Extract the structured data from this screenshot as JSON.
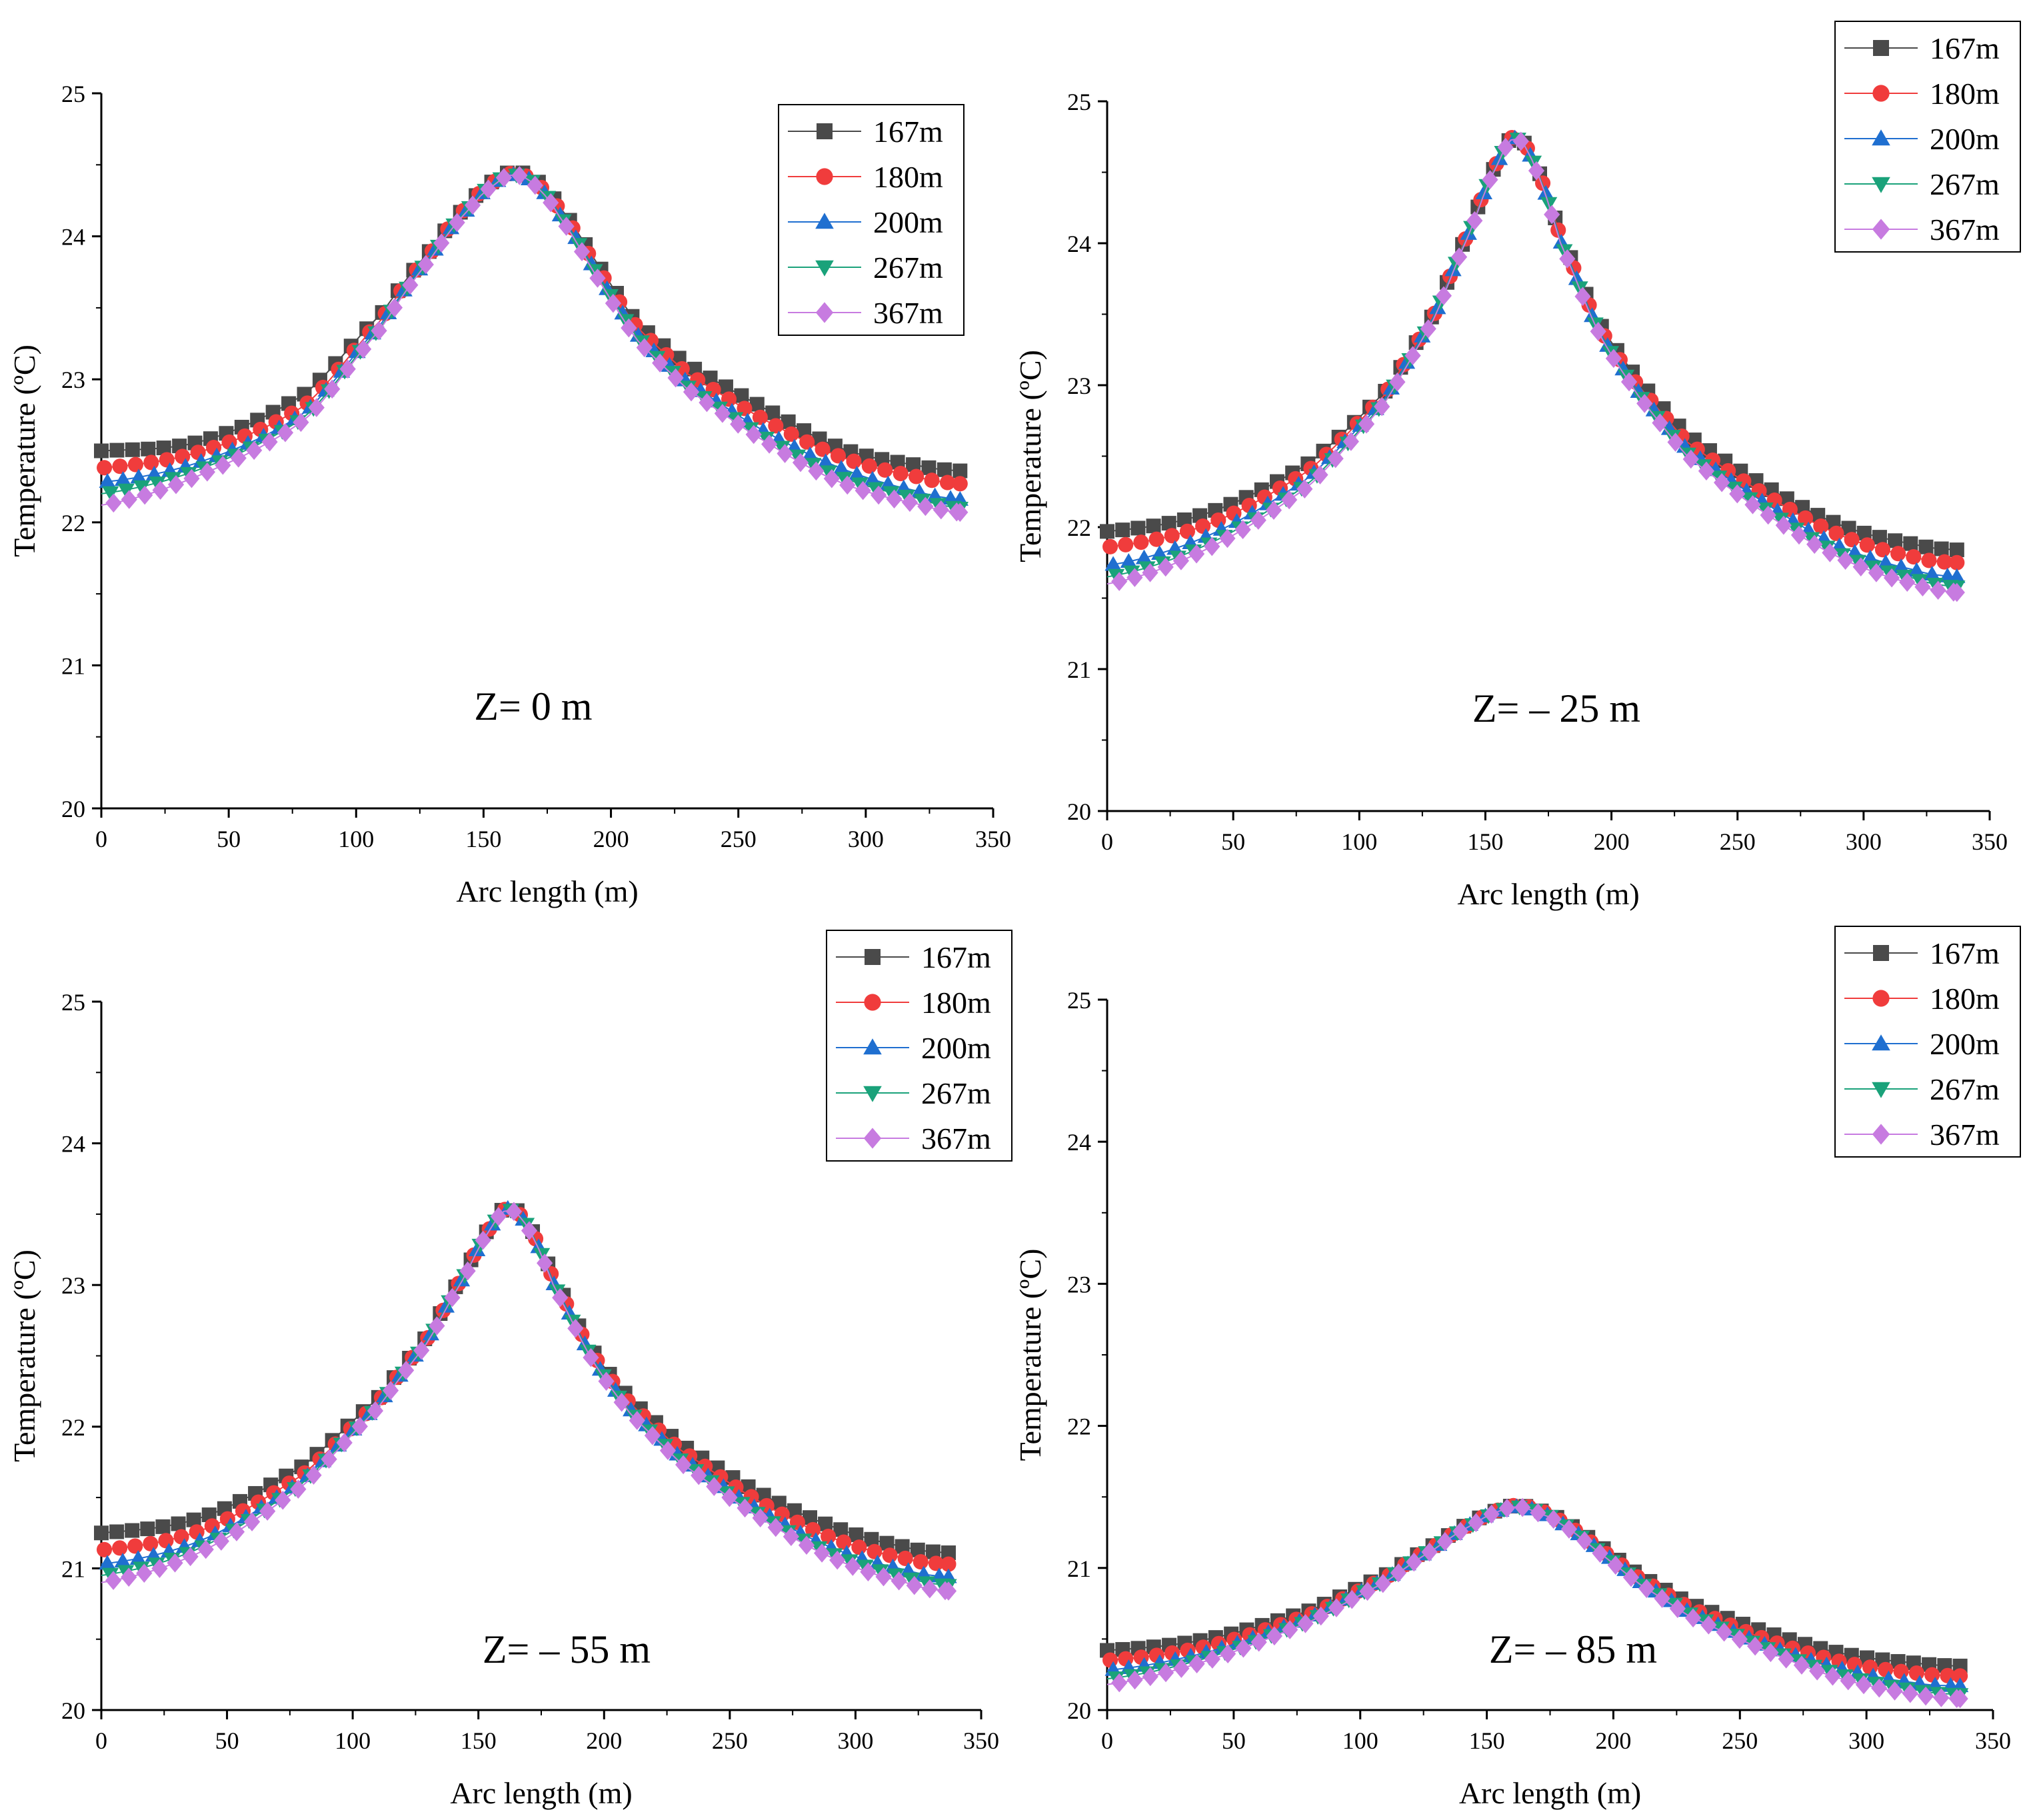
{
  "chart_data": [
    {
      "type": "scatter",
      "title": "",
      "annotation": "Z= 0 m",
      "xlabel": "Arc length (m)",
      "ylabel": "Temperature (ºC)",
      "xlim": [
        0,
        350
      ],
      "ylim": [
        20,
        25
      ],
      "xticks": [
        "0",
        "50",
        "100",
        "150",
        "200",
        "250",
        "300",
        "350"
      ],
      "yticks": [
        "20",
        "21",
        "22",
        "23",
        "24",
        "25"
      ],
      "grid": false,
      "legend": "top-right",
      "x": [
        0,
        40,
        80,
        110,
        130,
        145,
        155,
        162,
        170,
        180,
        195,
        210,
        230,
        260,
        290,
        320,
        337
      ],
      "series": [
        {
          "name": "167m",
          "color": "#4a4a4a",
          "marker": "square",
          "values": [
            22.5,
            22.57,
            22.9,
            23.46,
            23.92,
            24.24,
            24.4,
            24.45,
            24.4,
            24.2,
            23.8,
            23.4,
            23.1,
            22.8,
            22.52,
            22.4,
            22.36
          ]
        },
        {
          "name": "180m",
          "color": "#f03c3c",
          "marker": "circle",
          "values": [
            22.38,
            22.5,
            22.82,
            23.42,
            23.9,
            24.23,
            24.39,
            24.44,
            24.38,
            24.18,
            23.77,
            23.37,
            23.04,
            22.72,
            22.46,
            22.32,
            22.27
          ]
        },
        {
          "name": "200m",
          "color": "#1f6fd0",
          "marker": "triangle-up",
          "values": [
            22.28,
            22.43,
            22.77,
            23.39,
            23.88,
            24.21,
            24.38,
            24.43,
            24.37,
            24.15,
            23.73,
            23.32,
            22.98,
            22.64,
            22.38,
            22.22,
            22.16
          ]
        },
        {
          "name": "267m",
          "color": "#1aa27a",
          "marker": "triangle-down",
          "values": [
            22.2,
            22.38,
            22.74,
            23.37,
            23.87,
            24.21,
            24.38,
            24.43,
            24.37,
            24.14,
            23.72,
            23.3,
            22.95,
            22.6,
            22.32,
            22.17,
            22.1
          ]
        },
        {
          "name": "367m",
          "color": "#c77be0",
          "marker": "diamond",
          "values": [
            22.12,
            22.34,
            22.72,
            23.36,
            23.86,
            24.2,
            24.37,
            24.43,
            24.36,
            24.13,
            23.7,
            23.28,
            22.93,
            22.57,
            22.28,
            22.13,
            22.07
          ]
        }
      ]
    },
    {
      "type": "scatter",
      "title": "",
      "annotation": "Z=  – 25 m",
      "xlabel": "Arc length (m)",
      "ylabel": "Temperature (ºC)",
      "xlim": [
        0,
        350
      ],
      "ylim": [
        20,
        25
      ],
      "xticks": [
        "0",
        "50",
        "100",
        "150",
        "200",
        "250",
        "300",
        "350"
      ],
      "yticks": [
        "20",
        "21",
        "22",
        "23",
        "24",
        "25"
      ],
      "grid": false,
      "legend": "top-right",
      "x": [
        0,
        40,
        80,
        110,
        130,
        145,
        155,
        162,
        170,
        180,
        195,
        210,
        230,
        260,
        290,
        320,
        337
      ],
      "series": [
        {
          "name": "167m",
          "color": "#4a4a4a",
          "marker": "square",
          "values": [
            21.97,
            22.1,
            22.45,
            22.95,
            23.52,
            24.15,
            24.58,
            24.75,
            24.55,
            24.05,
            23.45,
            23.05,
            22.65,
            22.3,
            22.02,
            21.88,
            21.84
          ]
        },
        {
          "name": "180m",
          "color": "#f03c3c",
          "marker": "circle",
          "values": [
            21.86,
            22.02,
            22.4,
            22.93,
            23.51,
            24.14,
            24.58,
            24.75,
            24.54,
            24.03,
            23.42,
            23.01,
            22.6,
            22.24,
            21.95,
            21.79,
            21.75
          ]
        },
        {
          "name": "200m",
          "color": "#1f6fd0",
          "marker": "triangle-up",
          "values": [
            21.73,
            21.94,
            22.35,
            22.9,
            23.5,
            24.13,
            24.57,
            24.74,
            24.53,
            24.01,
            23.39,
            22.97,
            22.55,
            22.18,
            21.87,
            21.7,
            21.65
          ]
        },
        {
          "name": "267m",
          "color": "#1aa27a",
          "marker": "triangle-down",
          "values": [
            21.65,
            21.88,
            22.31,
            22.88,
            23.49,
            24.13,
            24.57,
            24.74,
            24.53,
            24.0,
            23.38,
            22.95,
            22.52,
            22.14,
            21.82,
            21.64,
            21.58
          ]
        },
        {
          "name": "367m",
          "color": "#c77be0",
          "marker": "diamond",
          "values": [
            21.6,
            21.85,
            22.29,
            22.87,
            23.48,
            24.12,
            24.56,
            24.74,
            24.52,
            23.99,
            23.37,
            22.94,
            22.5,
            22.11,
            21.79,
            21.6,
            21.54
          ]
        }
      ]
    },
    {
      "type": "scatter",
      "title": "",
      "annotation": "Z= – 55 m",
      "xlabel": "Arc length (m)",
      "ylabel": "Temperature (ºC)",
      "xlim": [
        0,
        350
      ],
      "ylim": [
        20,
        25
      ],
      "xticks": [
        "0",
        "50",
        "100",
        "150",
        "200",
        "250",
        "300",
        "350"
      ],
      "yticks": [
        "20",
        "21",
        "22",
        "23",
        "24",
        "25"
      ],
      "grid": false,
      "legend": "top-right",
      "x": [
        0,
        40,
        80,
        110,
        130,
        145,
        155,
        162,
        170,
        180,
        195,
        210,
        230,
        260,
        290,
        320,
        337
      ],
      "series": [
        {
          "name": "167m",
          "color": "#4a4a4a",
          "marker": "square",
          "values": [
            21.25,
            21.36,
            21.72,
            22.2,
            22.65,
            23.1,
            23.42,
            23.55,
            23.42,
            23.05,
            22.55,
            22.2,
            21.88,
            21.55,
            21.3,
            21.15,
            21.11
          ]
        },
        {
          "name": "180m",
          "color": "#f03c3c",
          "marker": "circle",
          "values": [
            21.13,
            21.27,
            21.66,
            22.17,
            22.63,
            23.09,
            23.41,
            23.54,
            23.41,
            23.03,
            22.53,
            22.17,
            21.84,
            21.49,
            21.22,
            21.07,
            21.03
          ]
        },
        {
          "name": "200m",
          "color": "#1f6fd0",
          "marker": "triangle-up",
          "values": [
            21.03,
            21.2,
            21.62,
            22.15,
            22.62,
            23.08,
            23.41,
            23.54,
            23.4,
            23.01,
            22.5,
            22.13,
            21.79,
            21.43,
            21.15,
            20.99,
            20.94
          ]
        },
        {
          "name": "267m",
          "color": "#1aa27a",
          "marker": "triangle-down",
          "values": [
            20.95,
            21.15,
            21.6,
            22.14,
            22.61,
            23.08,
            23.4,
            23.53,
            23.4,
            23.0,
            22.49,
            22.11,
            21.77,
            21.4,
            21.11,
            20.94,
            20.88
          ]
        },
        {
          "name": "367m",
          "color": "#c77be0",
          "marker": "diamond",
          "values": [
            20.9,
            21.12,
            21.58,
            22.13,
            22.6,
            23.07,
            23.4,
            23.53,
            23.39,
            22.99,
            22.48,
            22.1,
            21.75,
            21.38,
            21.08,
            20.9,
            20.84
          ]
        }
      ]
    },
    {
      "type": "scatter",
      "title": "",
      "annotation": "Z= – 85 m",
      "xlabel": "Arc length (m)",
      "ylabel": "Temperature (ºC)",
      "xlim": [
        0,
        350
      ],
      "ylim": [
        20,
        25
      ],
      "xticks": [
        "0",
        "50",
        "100",
        "150",
        "200",
        "250",
        "300",
        "350"
      ],
      "yticks": [
        "20",
        "21",
        "22",
        "23",
        "24",
        "25"
      ],
      "grid": false,
      "legend": "top-right",
      "x": [
        0,
        40,
        80,
        110,
        130,
        145,
        155,
        162,
        170,
        180,
        195,
        210,
        230,
        260,
        290,
        320,
        337
      ],
      "series": [
        {
          "name": "167m",
          "color": "#4a4a4a",
          "marker": "square",
          "values": [
            20.42,
            20.5,
            20.7,
            20.95,
            21.17,
            21.33,
            21.41,
            21.44,
            21.41,
            21.33,
            21.15,
            20.95,
            20.75,
            20.55,
            20.4,
            20.33,
            20.31
          ]
        },
        {
          "name": "180m",
          "color": "#f03c3c",
          "marker": "circle",
          "values": [
            20.35,
            20.45,
            20.67,
            20.93,
            21.16,
            21.32,
            21.41,
            21.44,
            21.41,
            21.32,
            21.13,
            20.93,
            20.72,
            20.5,
            20.34,
            20.26,
            20.24
          ]
        },
        {
          "name": "200m",
          "color": "#1f6fd0",
          "marker": "triangle-up",
          "values": [
            20.28,
            20.41,
            20.65,
            20.92,
            21.15,
            21.32,
            21.4,
            21.43,
            21.4,
            21.31,
            21.12,
            20.91,
            20.69,
            20.46,
            20.29,
            20.19,
            20.17
          ]
        },
        {
          "name": "267m",
          "color": "#1aa27a",
          "marker": "triangle-down",
          "values": [
            20.22,
            20.37,
            20.63,
            20.91,
            21.15,
            21.31,
            21.4,
            21.43,
            21.4,
            21.31,
            21.11,
            20.9,
            20.68,
            20.44,
            20.25,
            20.14,
            20.11
          ]
        },
        {
          "name": "367m",
          "color": "#c77be0",
          "marker": "diamond",
          "values": [
            20.18,
            20.35,
            20.62,
            20.9,
            21.14,
            21.31,
            21.4,
            21.43,
            21.39,
            21.3,
            21.1,
            20.89,
            20.66,
            20.42,
            20.22,
            20.11,
            20.08
          ]
        }
      ]
    }
  ]
}
